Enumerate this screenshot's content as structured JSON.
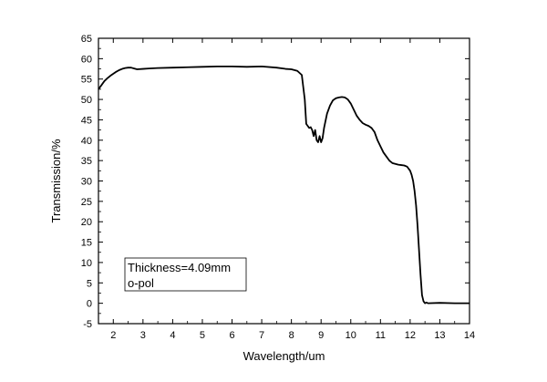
{
  "chart_data": {
    "type": "line",
    "title": "",
    "xlabel": "Wavelength/um",
    "ylabel": "Transmission/%",
    "xlim": [
      1.5,
      14
    ],
    "ylim": [
      -5,
      65
    ],
    "xticks": [
      2,
      3,
      4,
      5,
      6,
      7,
      8,
      9,
      10,
      11,
      12,
      13,
      14
    ],
    "yticks": [
      -5,
      0,
      5,
      10,
      15,
      20,
      25,
      30,
      35,
      40,
      45,
      50,
      55,
      60,
      65
    ],
    "grid": false,
    "legend": {
      "placement": "bottom-left",
      "lines": [
        "Thickness=4.09mm",
        "o-pol"
      ]
    },
    "series": [
      {
        "name": "o-pol",
        "color": "#000000",
        "x": [
          1.5,
          1.6,
          1.7,
          1.8,
          1.9,
          2.0,
          2.1,
          2.2,
          2.3,
          2.4,
          2.5,
          2.6,
          2.7,
          2.8,
          3.0,
          3.2,
          3.5,
          4.0,
          4.5,
          5.0,
          5.5,
          6.0,
          6.5,
          7.0,
          7.5,
          7.8,
          8.0,
          8.2,
          8.35,
          8.45,
          8.5,
          8.55,
          8.6,
          8.65,
          8.7,
          8.75,
          8.8,
          8.85,
          8.9,
          8.95,
          9.0,
          9.05,
          9.1,
          9.2,
          9.3,
          9.4,
          9.5,
          9.6,
          9.7,
          9.8,
          9.9,
          10.0,
          10.1,
          10.2,
          10.3,
          10.4,
          10.5,
          10.6,
          10.7,
          10.8,
          10.9,
          11.0,
          11.1,
          11.2,
          11.3,
          11.4,
          11.5,
          11.6,
          11.7,
          11.8,
          11.9,
          12.0,
          12.05,
          12.1,
          12.15,
          12.2,
          12.25,
          12.3,
          12.35,
          12.4,
          12.45,
          12.5,
          12.55,
          12.6,
          13.0,
          13.5,
          14.0
        ],
        "y": [
          52.5,
          53.5,
          54.5,
          55.2,
          55.8,
          56.3,
          56.8,
          57.2,
          57.5,
          57.7,
          57.8,
          57.8,
          57.6,
          57.4,
          57.5,
          57.6,
          57.7,
          57.8,
          57.9,
          58.0,
          58.1,
          58.1,
          58.0,
          58.1,
          57.8,
          57.5,
          57.4,
          57.0,
          56.0,
          50.0,
          44.0,
          43.5,
          43.0,
          43.2,
          42.5,
          41.0,
          42.5,
          40.0,
          39.5,
          41.0,
          39.5,
          40.5,
          43.0,
          46.5,
          48.5,
          49.8,
          50.3,
          50.5,
          50.6,
          50.5,
          50.0,
          49.0,
          47.5,
          46.0,
          45.0,
          44.2,
          43.8,
          43.5,
          43.0,
          42.0,
          40.0,
          38.5,
          37.0,
          36.0,
          35.0,
          34.4,
          34.2,
          34.0,
          33.9,
          33.8,
          33.5,
          32.5,
          31.5,
          30.0,
          27.5,
          24.0,
          19.0,
          13.0,
          7.0,
          2.0,
          0.5,
          0.0,
          0.2,
          0.0,
          0.1,
          0.0,
          0.0
        ]
      }
    ]
  }
}
